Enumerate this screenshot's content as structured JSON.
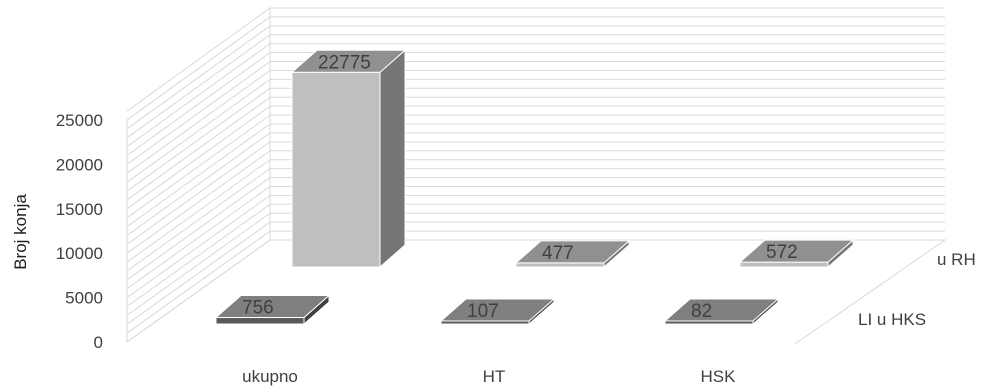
{
  "chart_data": {
    "type": "bar",
    "style": "3d-column",
    "categories": [
      "ukupno",
      "HT",
      "HSK"
    ],
    "series": [
      {
        "name": "LI u HKS",
        "values": [
          756,
          107,
          82
        ],
        "color": "#595959",
        "side_color": "#3f3f3f",
        "top_color": "#7f7f7f"
      },
      {
        "name": "u RH",
        "values": [
          22775,
          477,
          572
        ],
        "color": "#bfbfbf",
        "side_color": "#767676",
        "top_color": "#909090"
      }
    ],
    "ylabel": "Broj konja",
    "yticks": [
      "0",
      "5000",
      "10000",
      "15000",
      "20000",
      "25000"
    ],
    "ylim": [
      0,
      25000
    ],
    "grid": true,
    "axis_color": "#d9d9d9",
    "text_color": "#404040"
  }
}
